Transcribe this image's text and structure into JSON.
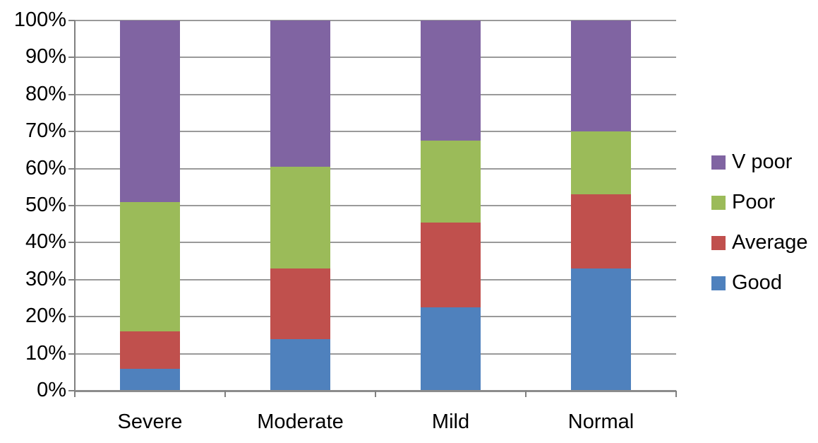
{
  "chart_data": {
    "type": "bar",
    "variant": "stacked-100-percent-column",
    "title": "",
    "xlabel": "",
    "ylabel": "",
    "categories": [
      "Severe",
      "Moderate",
      "Mild",
      "Normal"
    ],
    "series": [
      {
        "name": "Good",
        "color": "#4F81BD",
        "values": [
          6,
          14,
          22.5,
          33
        ]
      },
      {
        "name": "Average",
        "color": "#C0504D",
        "values": [
          10,
          19,
          23,
          20
        ]
      },
      {
        "name": "Poor",
        "color": "#9BBB59",
        "values": [
          35,
          27.5,
          22,
          17
        ]
      },
      {
        "name": "V poor",
        "color": "#8064A2",
        "values": [
          49,
          39.5,
          32.5,
          30
        ]
      }
    ],
    "y_axis": {
      "min": 0,
      "max": 100,
      "tick_step": 10,
      "tick_labels": [
        "0%",
        "10%",
        "20%",
        "30%",
        "40%",
        "50%",
        "60%",
        "70%",
        "80%",
        "90%",
        "100%"
      ],
      "grid": true
    },
    "legend": {
      "position": "right",
      "entries_top_to_bottom": [
        "V poor",
        "Poor",
        "Average",
        "Good"
      ]
    }
  },
  "colors": {
    "background": "#FFFFFF",
    "gridline": "#9A9A9A",
    "axis": "#808080",
    "text": "#000000"
  }
}
